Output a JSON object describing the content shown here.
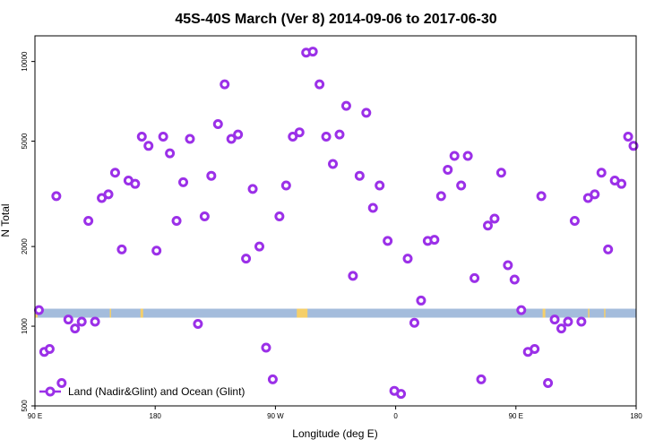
{
  "chart_data": {
    "type": "scatter",
    "title": "45S-40S March (Ver 8)   2014-09-06 to 2017-06-30",
    "xlabel": "Longitude (deg E)",
    "ylabel": "N Total",
    "x_scale": "linear",
    "y_scale": "log",
    "xlim": [
      90,
      540
    ],
    "ylim": [
      500,
      12500
    ],
    "xticks": [
      {
        "value": 90,
        "label": "90 E"
      },
      {
        "value": 180,
        "label": "180"
      },
      {
        "value": 270,
        "label": "90 W"
      },
      {
        "value": 360,
        "label": "0"
      },
      {
        "value": 450,
        "label": "90 E"
      },
      {
        "value": 540,
        "label": "180"
      }
    ],
    "yticks": [
      {
        "value": 500,
        "label": "500"
      },
      {
        "value": 1000,
        "label": "1000"
      },
      {
        "value": 2000,
        "label": "2000"
      },
      {
        "value": 5000,
        "label": "5000"
      },
      {
        "value": 10000,
        "label": "10000"
      }
    ],
    "grid": false,
    "legend_position": "bottom-left",
    "legend_entries": [
      "Land (Nadir&Glint) and Ocean (Glint)"
    ],
    "colors": {
      "series": "#9b30e8",
      "ocean_band": "#a4bcdc",
      "land_band": "#f5cf6a"
    },
    "land_band_value": 1120,
    "land_segments": [
      {
        "xmin": 90,
        "xmax": 92
      },
      {
        "xmin": 146,
        "xmax": 147
      },
      {
        "xmin": 169,
        "xmax": 171
      },
      {
        "xmin": 286,
        "xmax": 294
      },
      {
        "xmin": 470,
        "xmax": 472
      },
      {
        "xmin": 504,
        "xmax": 505
      },
      {
        "xmin": 516,
        "xmax": 517
      },
      {
        "xmin": 540,
        "xmax": 541
      }
    ],
    "series": [
      {
        "name": "Land (Nadir&Glint) and Ocean (Glint)",
        "points": [
          [
            93,
            1150
          ],
          [
            97,
            800
          ],
          [
            101,
            820
          ],
          [
            106,
            3100
          ],
          [
            110,
            610
          ],
          [
            115,
            1060
          ],
          [
            120,
            980
          ],
          [
            125,
            1040
          ],
          [
            130,
            2500
          ],
          [
            135,
            1040
          ],
          [
            140,
            3050
          ],
          [
            145,
            3150
          ],
          [
            150,
            3800
          ],
          [
            155,
            1950
          ],
          [
            160,
            3550
          ],
          [
            165,
            3450
          ],
          [
            170,
            5200
          ],
          [
            175,
            4800
          ],
          [
            181,
            1930
          ],
          [
            186,
            5200
          ],
          [
            191,
            4500
          ],
          [
            196,
            2500
          ],
          [
            201,
            3500
          ],
          [
            206,
            5100
          ],
          [
            212,
            1020
          ],
          [
            217,
            2600
          ],
          [
            222,
            3700
          ],
          [
            227,
            5800
          ],
          [
            232,
            8200
          ],
          [
            237,
            5100
          ],
          [
            242,
            5300
          ],
          [
            248,
            1800
          ],
          [
            253,
            3300
          ],
          [
            258,
            2000
          ],
          [
            263,
            830
          ],
          [
            268,
            630
          ],
          [
            273,
            2600
          ],
          [
            278,
            3400
          ],
          [
            283,
            5200
          ],
          [
            288,
            5400
          ],
          [
            293,
            10800
          ],
          [
            298,
            10900
          ],
          [
            303,
            8200
          ],
          [
            308,
            5200
          ],
          [
            313,
            4100
          ],
          [
            318,
            5300
          ],
          [
            323,
            6800
          ],
          [
            328,
            1550
          ],
          [
            333,
            3700
          ],
          [
            338,
            6400
          ],
          [
            343,
            2800
          ],
          [
            348,
            3400
          ],
          [
            354,
            2100
          ],
          [
            359,
            570
          ],
          [
            364,
            555
          ],
          [
            369,
            1800
          ],
          [
            374,
            1030
          ],
          [
            379,
            1250
          ],
          [
            384,
            2100
          ],
          [
            389,
            2120
          ],
          [
            394,
            3100
          ],
          [
            399,
            3900
          ],
          [
            404,
            4400
          ],
          [
            409,
            3400
          ],
          [
            414,
            4400
          ],
          [
            419,
            1520
          ],
          [
            424,
            630
          ],
          [
            429,
            2400
          ],
          [
            434,
            2550
          ],
          [
            439,
            3800
          ],
          [
            444,
            1700
          ],
          [
            449,
            1500
          ],
          [
            454,
            1150
          ],
          [
            459,
            800
          ],
          [
            464,
            820
          ],
          [
            469,
            3100
          ],
          [
            474,
            610
          ],
          [
            479,
            1060
          ],
          [
            484,
            980
          ],
          [
            489,
            1040
          ],
          [
            494,
            2500
          ],
          [
            499,
            1040
          ],
          [
            504,
            3050
          ],
          [
            509,
            3150
          ],
          [
            514,
            3800
          ],
          [
            519,
            1950
          ],
          [
            524,
            3550
          ],
          [
            529,
            3450
          ],
          [
            534,
            5200
          ],
          [
            538,
            4800
          ]
        ]
      }
    ]
  }
}
